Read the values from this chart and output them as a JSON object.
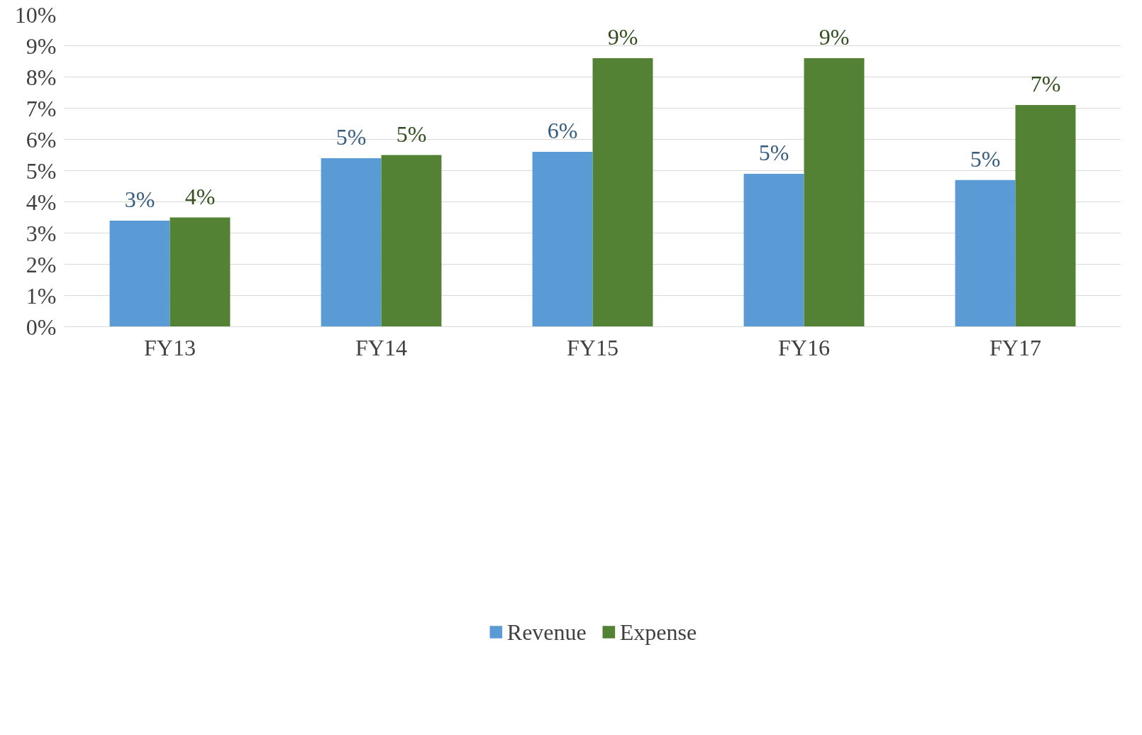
{
  "chart_data": {
    "type": "bar",
    "categories": [
      "FY13",
      "FY14",
      "FY15",
      "FY16",
      "FY17"
    ],
    "series": [
      {
        "name": "Revenue",
        "color": "#5b9bd5",
        "values": [
          3.4,
          5.4,
          5.6,
          4.9,
          4.7
        ],
        "value_labels": [
          "3%",
          "5%",
          "6%",
          "5%",
          "5%"
        ]
      },
      {
        "name": "Expense",
        "color": "#548235",
        "values": [
          3.5,
          5.5,
          8.6,
          8.6,
          7.1
        ],
        "value_labels": [
          "4%",
          "5%",
          "9%",
          "9%",
          "7%"
        ]
      }
    ],
    "ylim": [
      0,
      10
    ],
    "yticks": [
      {
        "value": 0,
        "label": "0%"
      },
      {
        "value": 1,
        "label": "1%"
      },
      {
        "value": 2,
        "label": "2%"
      },
      {
        "value": 3,
        "label": "3%"
      },
      {
        "value": 4,
        "label": "4%"
      },
      {
        "value": 5,
        "label": "5%"
      },
      {
        "value": 6,
        "label": "6%"
      },
      {
        "value": 7,
        "label": "7%"
      },
      {
        "value": 8,
        "label": "8%"
      },
      {
        "value": 9,
        "label": "9%"
      },
      {
        "value": 10,
        "label": "10%"
      }
    ],
    "grid": "y",
    "legend": "bottom"
  }
}
